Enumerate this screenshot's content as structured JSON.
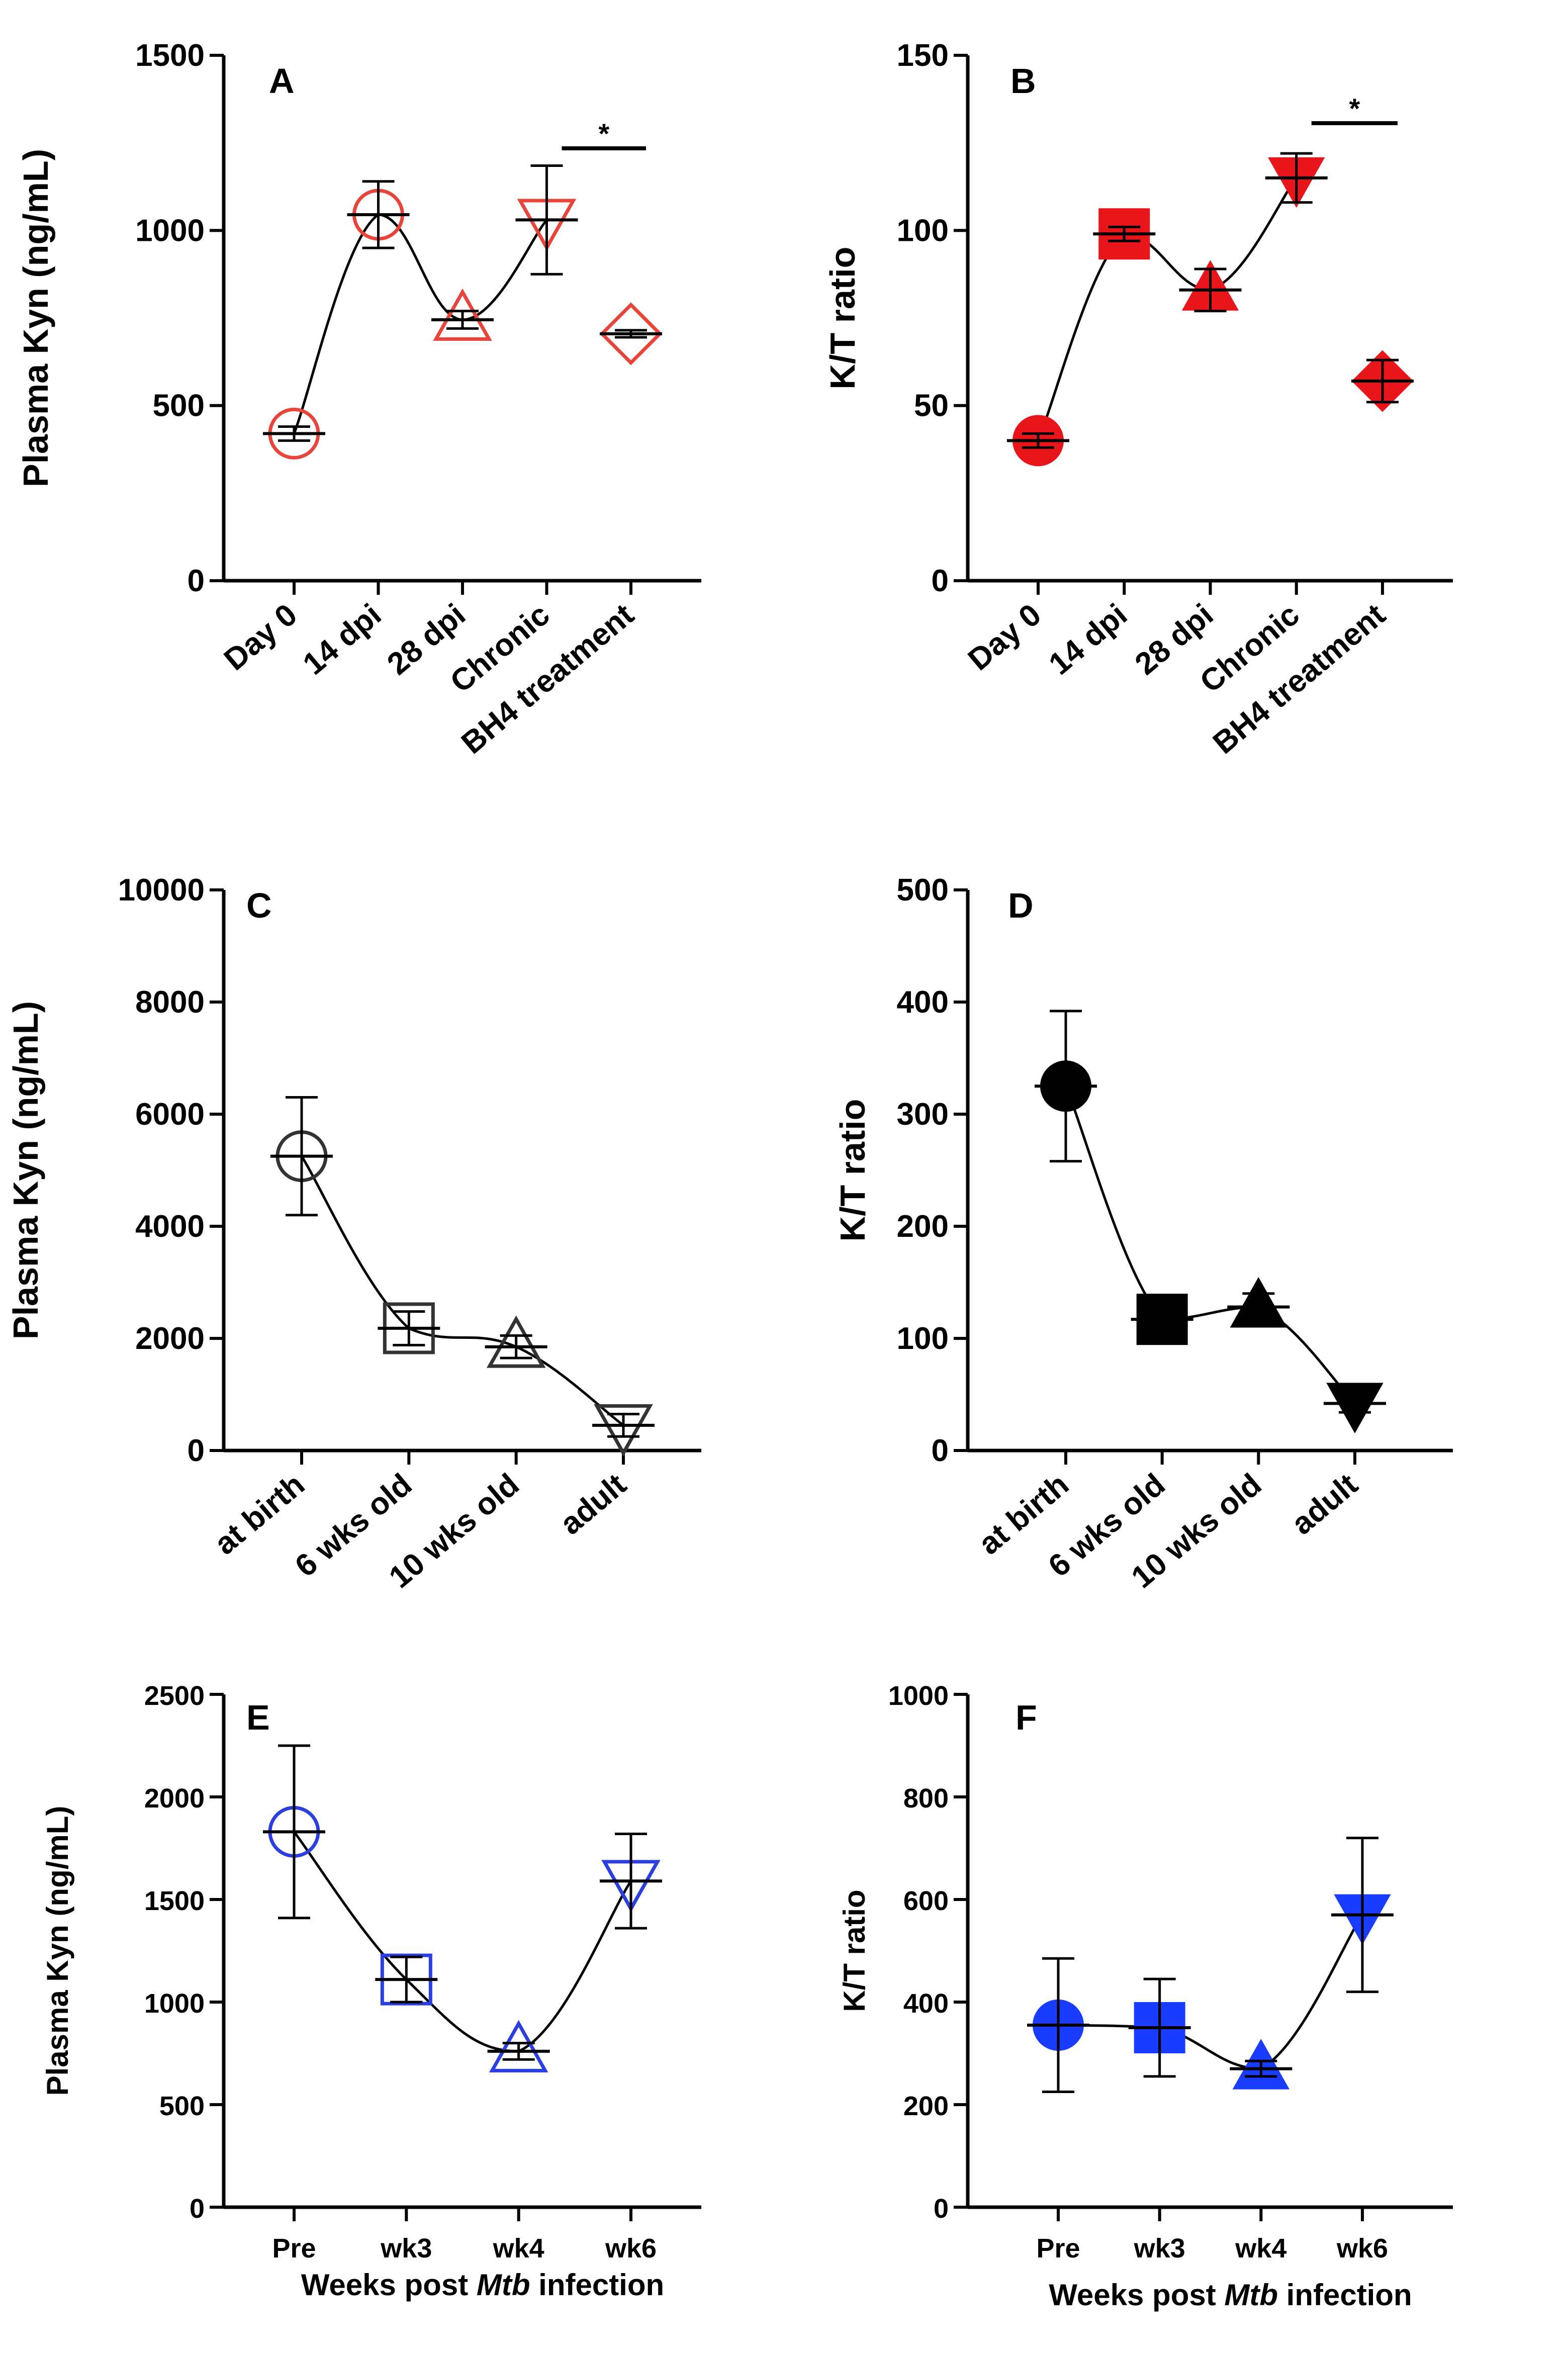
{
  "chart_data": [
    {
      "panel": "A",
      "type": "scatter",
      "categories": [
        "Day 0",
        "14 dpi",
        "28 dpi",
        "Chronic",
        "BH4 treatment"
      ],
      "ylabel": "Plasma Kyn (ng/mL)",
      "xlabel": "",
      "ylim": [
        0,
        1500
      ],
      "yticks": [
        0,
        500,
        1000,
        1500
      ],
      "series": [
        {
          "name": "Plasma Kyn",
          "values": [
            420,
            1045,
            745,
            1030,
            705
          ],
          "err": [
            20,
            95,
            25,
            155,
            10
          ],
          "markers": [
            "circle",
            "circle",
            "triangle",
            "triangle-down",
            "diamond"
          ],
          "filled": false,
          "color": "#e8443a",
          "connected": [
            0,
            1,
            2,
            3
          ]
        }
      ],
      "significance": [
        {
          "from": 3,
          "to": 4,
          "label": "*"
        }
      ]
    },
    {
      "panel": "B",
      "type": "scatter",
      "categories": [
        "Day 0",
        "14 dpi",
        "28 dpi",
        "Chronic",
        "BH4 treatment"
      ],
      "ylabel": "K/T ratio",
      "xlabel": "",
      "ylim": [
        0,
        150
      ],
      "yticks": [
        0,
        50,
        100,
        150
      ],
      "series": [
        {
          "name": "K/T ratio",
          "values": [
            40,
            99,
            83,
            115,
            57
          ],
          "err": [
            2,
            2,
            6,
            7,
            6
          ],
          "markers": [
            "circle",
            "square",
            "triangle",
            "triangle-down",
            "diamond"
          ],
          "filled": true,
          "color": "#e8161b",
          "connected": [
            0,
            1,
            2,
            3
          ]
        }
      ],
      "significance": [
        {
          "from": 3,
          "to": 4,
          "label": "*"
        }
      ]
    },
    {
      "panel": "C",
      "type": "scatter",
      "categories": [
        "at birth",
        "6 wks old",
        "10 wks old",
        "adult"
      ],
      "ylabel": "Plasma Kyn (ng/mL)",
      "xlabel": "",
      "ylim": [
        0,
        10000
      ],
      "yticks": [
        0,
        2000,
        4000,
        6000,
        8000,
        10000
      ],
      "series": [
        {
          "name": "Plasma Kyn",
          "values": [
            5250,
            2180,
            1850,
            450
          ],
          "err": [
            1050,
            300,
            200,
            200
          ],
          "markers": [
            "circle",
            "square",
            "triangle",
            "triangle-down"
          ],
          "filled": false,
          "color": "#333333",
          "connected": [
            0,
            1,
            2,
            3
          ]
        }
      ],
      "significance": []
    },
    {
      "panel": "D",
      "type": "scatter",
      "categories": [
        "at birth",
        "6 wks old",
        "10 wks old",
        "adult"
      ],
      "ylabel": "K/T ratio",
      "xlabel": "",
      "ylim": [
        0,
        500
      ],
      "yticks": [
        0,
        100,
        200,
        300,
        400,
        500
      ],
      "series": [
        {
          "name": "K/T ratio",
          "values": [
            325,
            117,
            128,
            42
          ],
          "err": [
            67,
            5,
            12,
            8
          ],
          "markers": [
            "circle",
            "square",
            "triangle",
            "triangle-down"
          ],
          "filled": true,
          "color": "#000000",
          "connected": [
            0,
            1,
            2,
            3
          ]
        }
      ],
      "significance": []
    },
    {
      "panel": "E",
      "type": "scatter",
      "categories": [
        "Pre",
        "wk3",
        "wk4",
        "wk6"
      ],
      "ylabel": "Plasma Kyn (ng/mL)",
      "xlabel_parts": [
        "Weeks post ",
        "Mtb",
        " infection"
      ],
      "ylim": [
        0,
        2500
      ],
      "yticks": [
        0,
        500,
        1000,
        1500,
        2000,
        2500
      ],
      "series": [
        {
          "name": "Plasma Kyn",
          "values": [
            1830,
            1110,
            760,
            1590
          ],
          "err": [
            420,
            110,
            40,
            230
          ],
          "markers": [
            "circle",
            "square",
            "triangle",
            "triangle-down"
          ],
          "filled": false,
          "color": "#2b3fe0",
          "connected": [
            0,
            1,
            2,
            3
          ]
        }
      ],
      "significance": []
    },
    {
      "panel": "F",
      "type": "scatter",
      "categories": [
        "Pre",
        "wk3",
        "wk4",
        "wk6"
      ],
      "ylabel": "K/T ratio",
      "xlabel_parts": [
        "Weeks post ",
        "Mtb",
        " infection"
      ],
      "ylim": [
        0,
        1000
      ],
      "yticks": [
        0,
        200,
        400,
        600,
        800,
        1000
      ],
      "series": [
        {
          "name": "K/T ratio",
          "values": [
            355,
            350,
            270,
            570
          ],
          "err": [
            130,
            95,
            15,
            150
          ],
          "markers": [
            "circle",
            "square",
            "triangle",
            "triangle-down"
          ],
          "filled": true,
          "color": "#1a3cff",
          "connected": [
            0,
            1,
            2,
            3
          ]
        }
      ],
      "significance": []
    }
  ]
}
